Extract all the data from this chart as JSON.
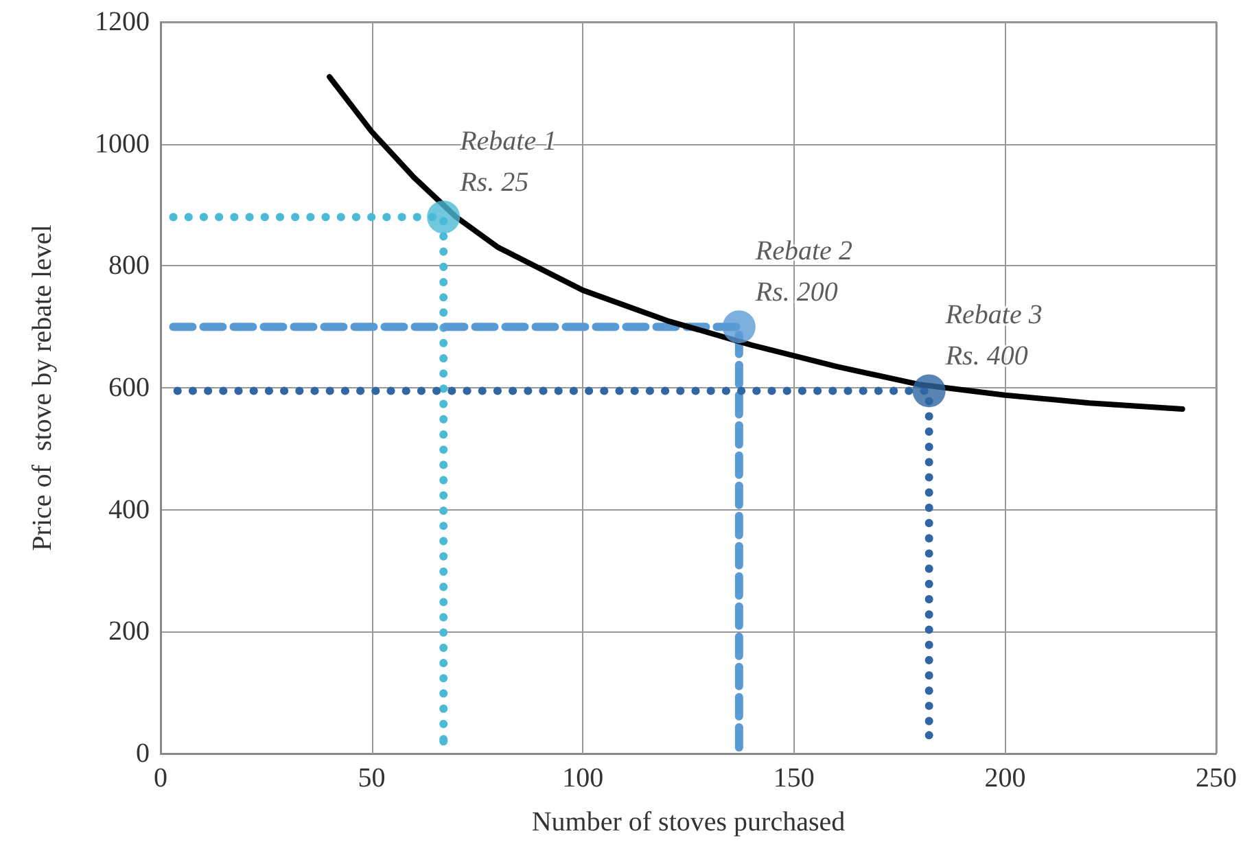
{
  "chart_data": {
    "type": "line",
    "xlabel": "Number of stoves purchased",
    "ylabel": "Price of  stove by rebate level",
    "xlim": [
      0,
      250
    ],
    "xticks": [
      0,
      50,
      100,
      150,
      200,
      250
    ],
    "ylim": [
      0,
      1200
    ],
    "yticks": [
      0,
      200,
      400,
      600,
      800,
      1000,
      1200
    ],
    "grid": true,
    "series": [
      {
        "color": "#4bbad6",
        "line_style": "dotted",
        "marker": "none",
        "x": [
          3,
          67,
          67
        ],
        "values": [
          880,
          880,
          20
        ]
      },
      {
        "color": "#5b9bd5",
        "line_style": "dashed",
        "marker": "none",
        "x": [
          3,
          137,
          137
        ],
        "values": [
          700,
          700,
          10
        ]
      },
      {
        "color": "#2f66a3",
        "line_style": "dotted",
        "marker": "none",
        "x": [
          4,
          182,
          182
        ],
        "values": [
          595,
          595,
          30
        ]
      },
      {
        "color": "#000000",
        "line_style": "solid",
        "marker": "none",
        "x": [
          40,
          50,
          60,
          70,
          80,
          100,
          120,
          140,
          160,
          180,
          200,
          220,
          242
        ],
        "values": [
          1110,
          1020,
          945,
          880,
          830,
          760,
          710,
          670,
          635,
          605,
          588,
          575,
          565
        ]
      },
      {
        "type": "scatter",
        "marker": "circle",
        "x": [
          67,
          137,
          182
        ],
        "values": [
          880,
          700,
          595
        ],
        "colors": [
          "#4bbad6",
          "#5b9bd5",
          "#2f66a3"
        ]
      }
    ],
    "annotations": [
      {
        "text": "Rebate 1\nRs. 25",
        "x": 67,
        "y": 880
      },
      {
        "text": "Rebate 2\nRs. 200",
        "x": 137,
        "y": 700
      },
      {
        "text": "Rebate 3\nRs. 400",
        "x": 182,
        "y": 595
      }
    ]
  }
}
